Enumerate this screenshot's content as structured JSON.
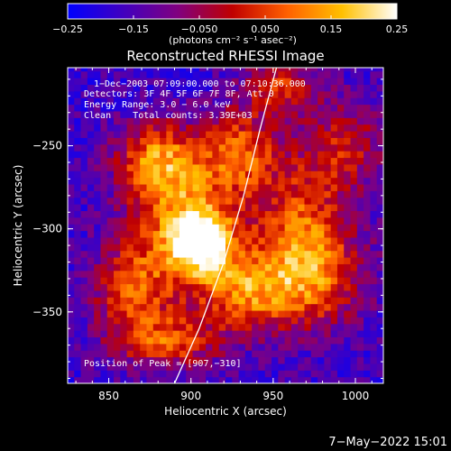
{
  "chart_data": {
    "type": "heatmap",
    "title": "Reconstructed RHESSI Image",
    "xlabel": "Heliocentric X (arcsec)",
    "ylabel": "Heliocentric Y (arcsec)",
    "xlim": [
      825,
      1017
    ],
    "ylim": [
      -393,
      -203
    ],
    "x_ticks": [
      "850",
      "900",
      "950",
      "1000"
    ],
    "y_ticks": [
      "−250",
      "−300",
      "−350"
    ],
    "x_tick_values": [
      850,
      900,
      950,
      1000
    ],
    "y_tick_values": [
      -250,
      -300,
      -350
    ],
    "colorbar": {
      "min": -0.25,
      "max": 0.25,
      "ticks": [
        "−0.25",
        "−0.15",
        "−0.050",
        "0.050",
        "0.15",
        "0.25"
      ],
      "tick_values": [
        -0.25,
        -0.15,
        -0.05,
        0.05,
        0.15,
        0.25
      ],
      "unit_label": "(photons cm⁻² s⁻¹ asec⁻²)",
      "colors": [
        "#0000ff",
        "#4000c0",
        "#800080",
        "#c00000",
        "#ff6000",
        "#ffc000",
        "#ffffff"
      ]
    },
    "annotations": [
      "1−Dec−2003 07:09:00.000 to 07:10:36.000",
      "Detectors: 3F 4F 5F 6F 7F 8F, Att 0",
      "Energy Range: 3.0 − 6.0 keV",
      "Clean    Total counts: 3.39E+03"
    ],
    "peak_label": "Position of Peak = [907,−310]",
    "peak": [
      907,
      -310
    ],
    "limb_curve": [
      [
        890,
        -393
      ],
      [
        905,
        -360
      ],
      [
        920,
        -320
      ],
      [
        932,
        -280
      ],
      [
        942,
        -240
      ],
      [
        952,
        -203
      ]
    ],
    "hotspots": [
      {
        "x": 905,
        "y": -310,
        "value": 0.26,
        "sx": 12,
        "sy": 12
      },
      {
        "x": 893,
        "y": -300,
        "value": 0.16,
        "sx": 22,
        "sy": 30
      },
      {
        "x": 877,
        "y": -260,
        "value": 0.11,
        "sx": 18,
        "sy": 16
      },
      {
        "x": 928,
        "y": -255,
        "value": 0.1,
        "sx": 16,
        "sy": 18
      },
      {
        "x": 965,
        "y": -300,
        "value": 0.09,
        "sx": 22,
        "sy": 26
      },
      {
        "x": 970,
        "y": -335,
        "value": 0.09,
        "sx": 22,
        "sy": 20
      },
      {
        "x": 930,
        "y": -340,
        "value": 0.09,
        "sx": 18,
        "sy": 16
      },
      {
        "x": 860,
        "y": -340,
        "value": 0.07,
        "sx": 16,
        "sy": 20
      },
      {
        "x": 885,
        "y": -370,
        "value": 0.07,
        "sx": 22,
        "sy": 12
      },
      {
        "x": 950,
        "y": -215,
        "value": 0.06,
        "sx": 14,
        "sy": 12
      },
      {
        "x": 990,
        "y": -250,
        "value": 0.02,
        "sx": 20,
        "sy": 20
      }
    ],
    "background_value": -0.17,
    "grid": false
  },
  "timestamp": "7−May−2022 15:01"
}
